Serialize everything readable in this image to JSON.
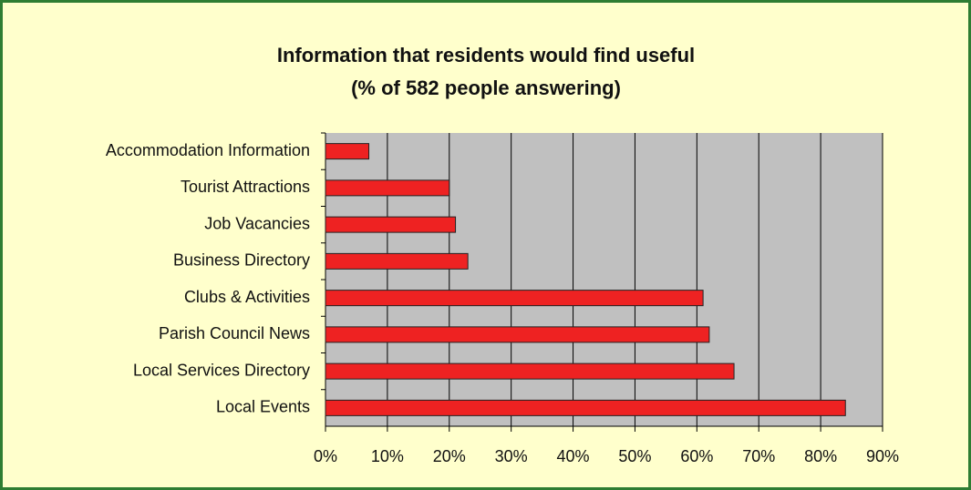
{
  "chart_data": {
    "type": "bar",
    "orientation": "horizontal",
    "title": "Information that residents would find useful",
    "subtitle": "(% of 582 people answering)",
    "categories": [
      "Accommodation Information",
      "Tourist Attractions",
      "Job Vacancies",
      "Business Directory",
      "Clubs & Activities",
      "Parish Council News",
      "Local Services Directory",
      "Local Events"
    ],
    "values": [
      7,
      20,
      21,
      23,
      61,
      62,
      66,
      84
    ],
    "color": "#ee2222",
    "xlim": [
      0,
      90
    ],
    "xticks": [
      {
        "value": 0,
        "label": "0%"
      },
      {
        "value": 10,
        "label": "10%"
      },
      {
        "value": 20,
        "label": "20%"
      },
      {
        "value": 30,
        "label": "30%"
      },
      {
        "value": 40,
        "label": "40%"
      },
      {
        "value": 50,
        "label": "50%"
      },
      {
        "value": 60,
        "label": "60%"
      },
      {
        "value": 70,
        "label": "70%"
      },
      {
        "value": 80,
        "label": "80%"
      },
      {
        "value": 90,
        "label": "90%"
      }
    ],
    "grid": true
  }
}
